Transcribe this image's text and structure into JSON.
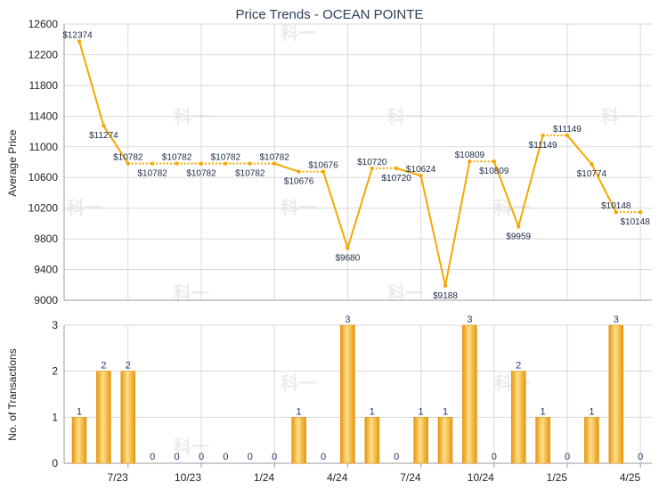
{
  "chart_data": {
    "title": "Price Trends - OCEAN POINTE",
    "x_ticks": [
      "7/23",
      "10/23",
      "1/24",
      "4/24",
      "7/24",
      "10/24",
      "1/25",
      "4/25"
    ],
    "price_chart": {
      "type": "line",
      "ylabel": "Average Price",
      "ylim": [
        9000,
        12600
      ],
      "yticks": [
        9000,
        9400,
        9800,
        10200,
        10600,
        11000,
        11400,
        11800,
        12200,
        12600
      ],
      "values": [
        12374,
        11274,
        10782,
        10782,
        10782,
        10782,
        10782,
        10782,
        10782,
        10676,
        10676,
        9680,
        10720,
        10720,
        10624,
        9188,
        10809,
        10809,
        9959,
        11149,
        11149,
        10774,
        10148,
        10148
      ],
      "labels": [
        "$12374",
        "$11274",
        "$10782",
        "$10782",
        "$10782",
        "$10782",
        "$10782",
        "$10782",
        "$10782",
        "$10676",
        "$10676",
        "$9680",
        "$10720",
        "$10720",
        "$10624",
        "$9188",
        "$10809",
        "$10809",
        "$9959",
        "$11149",
        "$11149",
        "$10774",
        "$10148",
        "$10148"
      ],
      "color": "#f5a800"
    },
    "transactions_chart": {
      "type": "bar",
      "ylabel": "No. of Transactions",
      "ylim": [
        0,
        3
      ],
      "yticks": [
        0,
        1,
        2,
        3
      ],
      "values": [
        1,
        2,
        2,
        0,
        0,
        0,
        0,
        0,
        0,
        1,
        0,
        3,
        1,
        0,
        1,
        1,
        3,
        0,
        2,
        1,
        0,
        1,
        3,
        0
      ],
      "color": "#f5a800"
    },
    "watermark": "科一"
  }
}
